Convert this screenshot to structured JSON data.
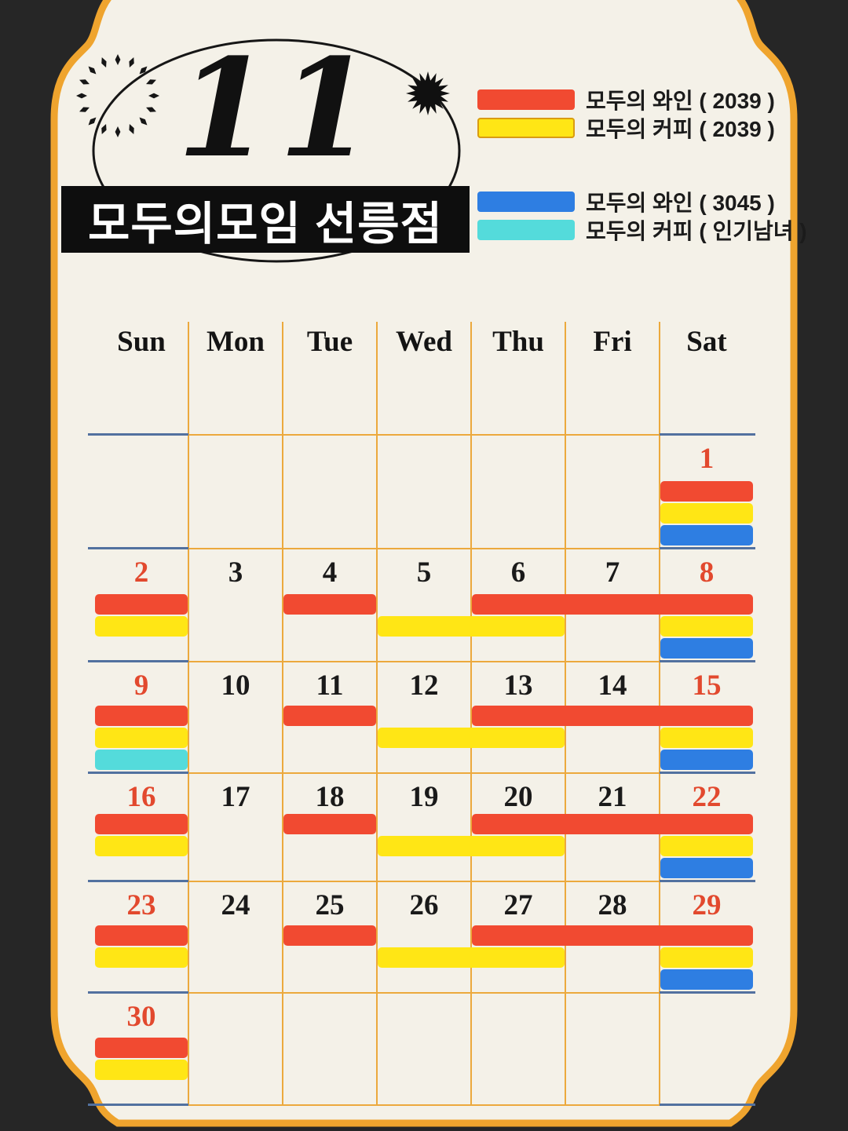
{
  "title_block": {
    "month_number": "11",
    "store_title": "모두의모임 선릉점"
  },
  "legend": {
    "groups": [
      {
        "items": [
          {
            "id": "wine2039",
            "label": "모두의 와인 ( 2039 )"
          },
          {
            "id": "coffee2039",
            "label": "모두의 커피 ( 2039 )"
          }
        ]
      },
      {
        "items": [
          {
            "id": "wine3045",
            "label": "모두의 와인 ( 3045 )"
          },
          {
            "id": "coffeePop",
            "label": "모두의 커피 ( 인기남녀 )"
          }
        ]
      }
    ]
  },
  "colors": {
    "wine2039": "#F14A31",
    "coffee2039": "#FFE615",
    "wine3045": "#2E7EE2",
    "coffeePop": "#54DBDB",
    "page_bg": "#262626",
    "card_bg": "#F4F1E8",
    "card_border": "#EFA42E",
    "grid_orange": "#ECA93D",
    "grid_blue": "#52719F",
    "date_red": "#E2492E",
    "date_black": "#1A1A1A",
    "banner_bg": "#0E0E0E",
    "banner_text": "#FFFFFF"
  },
  "calendar": {
    "day_headers": [
      "Sun",
      "Mon",
      "Tue",
      "Wed",
      "Thu",
      "Fri",
      "Sat"
    ],
    "weeks": [
      {
        "dates": [
          {
            "col": 6,
            "num": "1"
          }
        ],
        "bars": [
          {
            "slot": 1,
            "from": 6,
            "to": 6,
            "type": "wine2039"
          },
          {
            "slot": 2,
            "from": 6,
            "to": 6,
            "type": "coffee2039"
          },
          {
            "slot": 3,
            "from": 6,
            "to": 6,
            "type": "wine3045"
          }
        ]
      },
      {
        "dates": [
          {
            "col": 0,
            "num": "2"
          },
          {
            "col": 1,
            "num": "3"
          },
          {
            "col": 2,
            "num": "4"
          },
          {
            "col": 3,
            "num": "5"
          },
          {
            "col": 4,
            "num": "6"
          },
          {
            "col": 5,
            "num": "7"
          },
          {
            "col": 6,
            "num": "8"
          }
        ],
        "bars": [
          {
            "slot": 1,
            "from": 0,
            "to": 0,
            "type": "wine2039"
          },
          {
            "slot": 1,
            "from": 2,
            "to": 2,
            "type": "wine2039"
          },
          {
            "slot": 1,
            "from": 4,
            "to": 6,
            "type": "wine2039"
          },
          {
            "slot": 2,
            "from": 0,
            "to": 0,
            "type": "coffee2039"
          },
          {
            "slot": 2,
            "from": 3,
            "to": 4,
            "type": "coffee2039"
          },
          {
            "slot": 2,
            "from": 6,
            "to": 6,
            "type": "coffee2039"
          },
          {
            "slot": 3,
            "from": 6,
            "to": 6,
            "type": "wine3045"
          }
        ]
      },
      {
        "dates": [
          {
            "col": 0,
            "num": "9"
          },
          {
            "col": 1,
            "num": "10"
          },
          {
            "col": 2,
            "num": "11"
          },
          {
            "col": 3,
            "num": "12"
          },
          {
            "col": 4,
            "num": "13"
          },
          {
            "col": 5,
            "num": "14"
          },
          {
            "col": 6,
            "num": "15"
          }
        ],
        "bars": [
          {
            "slot": 1,
            "from": 0,
            "to": 0,
            "type": "wine2039"
          },
          {
            "slot": 1,
            "from": 2,
            "to": 2,
            "type": "wine2039"
          },
          {
            "slot": 1,
            "from": 4,
            "to": 6,
            "type": "wine2039"
          },
          {
            "slot": 2,
            "from": 0,
            "to": 0,
            "type": "coffee2039"
          },
          {
            "slot": 2,
            "from": 3,
            "to": 4,
            "type": "coffee2039"
          },
          {
            "slot": 2,
            "from": 6,
            "to": 6,
            "type": "coffee2039"
          },
          {
            "slot": 3,
            "from": 0,
            "to": 0,
            "type": "coffeePop"
          },
          {
            "slot": 3,
            "from": 6,
            "to": 6,
            "type": "wine3045"
          }
        ]
      },
      {
        "dates": [
          {
            "col": 0,
            "num": "16"
          },
          {
            "col": 1,
            "num": "17"
          },
          {
            "col": 2,
            "num": "18"
          },
          {
            "col": 3,
            "num": "19"
          },
          {
            "col": 4,
            "num": "20"
          },
          {
            "col": 5,
            "num": "21"
          },
          {
            "col": 6,
            "num": "22"
          }
        ],
        "bars": [
          {
            "slot": 1,
            "from": 0,
            "to": 0,
            "type": "wine2039"
          },
          {
            "slot": 1,
            "from": 2,
            "to": 2,
            "type": "wine2039"
          },
          {
            "slot": 1,
            "from": 4,
            "to": 6,
            "type": "wine2039"
          },
          {
            "slot": 2,
            "from": 0,
            "to": 0,
            "type": "coffee2039"
          },
          {
            "slot": 2,
            "from": 3,
            "to": 4,
            "type": "coffee2039"
          },
          {
            "slot": 2,
            "from": 6,
            "to": 6,
            "type": "coffee2039"
          },
          {
            "slot": 3,
            "from": 6,
            "to": 6,
            "type": "wine3045"
          }
        ]
      },
      {
        "dates": [
          {
            "col": 0,
            "num": "23"
          },
          {
            "col": 1,
            "num": "24"
          },
          {
            "col": 2,
            "num": "25"
          },
          {
            "col": 3,
            "num": "26"
          },
          {
            "col": 4,
            "num": "27"
          },
          {
            "col": 5,
            "num": "28"
          },
          {
            "col": 6,
            "num": "29"
          }
        ],
        "bars": [
          {
            "slot": 1,
            "from": 0,
            "to": 0,
            "type": "wine2039"
          },
          {
            "slot": 1,
            "from": 2,
            "to": 2,
            "type": "wine2039"
          },
          {
            "slot": 1,
            "from": 4,
            "to": 6,
            "type": "wine2039"
          },
          {
            "slot": 2,
            "from": 0,
            "to": 0,
            "type": "coffee2039"
          },
          {
            "slot": 2,
            "from": 3,
            "to": 4,
            "type": "coffee2039"
          },
          {
            "slot": 2,
            "from": 6,
            "to": 6,
            "type": "coffee2039"
          },
          {
            "slot": 3,
            "from": 6,
            "to": 6,
            "type": "wine3045"
          }
        ]
      },
      {
        "dates": [
          {
            "col": 0,
            "num": "30"
          }
        ],
        "bars": [
          {
            "slot": 1,
            "from": 0,
            "to": 0,
            "type": "wine2039"
          },
          {
            "slot": 2,
            "from": 0,
            "to": 0,
            "type": "coffee2039"
          }
        ]
      }
    ]
  }
}
